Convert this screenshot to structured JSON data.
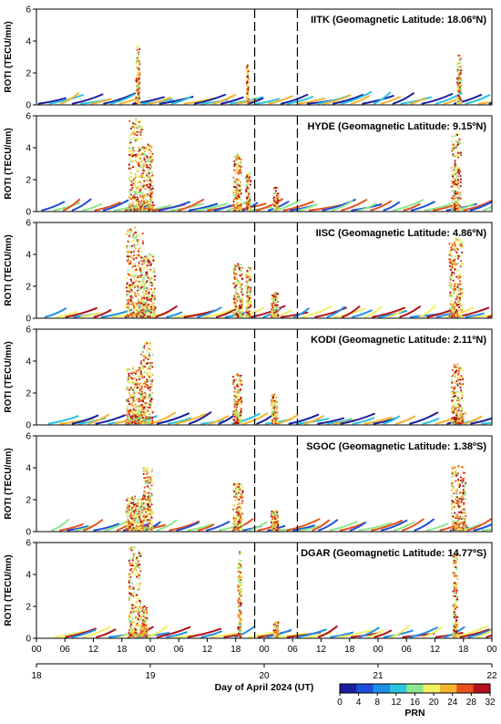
{
  "chart_data": {
    "type": "scatter",
    "colorbar": {
      "label": "PRN",
      "ticks": [
        0,
        4,
        8,
        12,
        16,
        20,
        24,
        28,
        32
      ],
      "colors": [
        "#1a1f9e",
        "#1e4fd8",
        "#1f8fe8",
        "#2ec3e0",
        "#8ee88a",
        "#f2f060",
        "#f5b42e",
        "#e8521e",
        "#b2121a"
      ]
    },
    "x_hour_ticks": [
      "00",
      "06",
      "12",
      "18",
      "00",
      "06",
      "12",
      "18",
      "00",
      "06",
      "12",
      "18",
      "00",
      "06",
      "12",
      "18",
      "00"
    ],
    "x_day_ticks": [
      "18",
      "19",
      "20",
      "21",
      "22"
    ],
    "xlabel": "Day of April 2024 (UT)",
    "x_range_hours": [
      0,
      96
    ],
    "storm_markers_hours": [
      46,
      55
    ],
    "panels": [
      {
        "title": "IITK (Geomagnetic Latitude: 18.06ºN)",
        "ylabel": "ROTI (TECU/mn)",
        "ylim": [
          0,
          6
        ],
        "yticks": [
          0,
          2,
          4,
          6
        ],
        "bursts": [
          {
            "start": 21.0,
            "end": 21.8,
            "peak": 3.7
          },
          {
            "start": 44.3,
            "end": 44.7,
            "peak": 2.5
          },
          {
            "start": 88.7,
            "end": 89.6,
            "peak": 3.1
          }
        ]
      },
      {
        "title": "HYDE (Geomagnetic Latitude: 9.15ºN)",
        "ylabel": "ROTI (TECU/mn)",
        "ylim": [
          0,
          6
        ],
        "yticks": [
          0,
          2,
          4,
          6
        ],
        "bursts": [
          {
            "start": 19.5,
            "end": 22.5,
            "peak": 5.8
          },
          {
            "start": 22.5,
            "end": 24.6,
            "peak": 4.2
          },
          {
            "start": 41.5,
            "end": 43.2,
            "peak": 3.6
          },
          {
            "start": 44.2,
            "end": 45.2,
            "peak": 2.4
          },
          {
            "start": 50.0,
            "end": 51.0,
            "peak": 1.5
          },
          {
            "start": 87.5,
            "end": 89.5,
            "peak": 4.9
          }
        ]
      },
      {
        "title": "IISC (Geomagnetic Latitude: 4.86ºN)",
        "ylabel": "ROTI (TECU/mn)",
        "ylim": [
          0,
          6
        ],
        "yticks": [
          0,
          2,
          4,
          6
        ],
        "bursts": [
          {
            "start": 19.0,
            "end": 22.5,
            "peak": 5.7
          },
          {
            "start": 22.5,
            "end": 25.0,
            "peak": 4.0
          },
          {
            "start": 41.5,
            "end": 43.5,
            "peak": 3.4
          },
          {
            "start": 44.2,
            "end": 45.2,
            "peak": 3.2
          },
          {
            "start": 49.5,
            "end": 51.0,
            "peak": 1.6
          },
          {
            "start": 87.0,
            "end": 89.8,
            "peak": 5.0
          }
        ]
      },
      {
        "title": "KODI (Geomagnetic Latitude: 2.11ºN)",
        "ylabel": "ROTI (TECU/mn)",
        "ylim": [
          0,
          6
        ],
        "yticks": [
          0,
          2,
          4,
          6
        ],
        "bursts": [
          {
            "start": 19.0,
            "end": 22.0,
            "peak": 3.6
          },
          {
            "start": 22.0,
            "end": 24.5,
            "peak": 5.2
          },
          {
            "start": 41.5,
            "end": 43.3,
            "peak": 3.2
          },
          {
            "start": 49.5,
            "end": 50.8,
            "peak": 1.9
          },
          {
            "start": 87.5,
            "end": 90.0,
            "peak": 3.8
          }
        ]
      },
      {
        "title": "SGOC (Geomagnetic Latitude: 1.38ºS)",
        "ylabel": "ROTI (TECU/mn)",
        "ylim": [
          0,
          6
        ],
        "yticks": [
          0,
          2,
          4,
          6
        ],
        "bursts": [
          {
            "start": 19.0,
            "end": 22.5,
            "peak": 2.2
          },
          {
            "start": 22.5,
            "end": 24.5,
            "peak": 4.0
          },
          {
            "start": 41.5,
            "end": 43.5,
            "peak": 3.0
          },
          {
            "start": 49.5,
            "end": 51.0,
            "peak": 1.3
          },
          {
            "start": 87.5,
            "end": 90.5,
            "peak": 4.1
          }
        ]
      },
      {
        "title": "DGAR (Geomagnetic Latitude: 14.77ºS)",
        "ylabel": "ROTI (TECU/mn)",
        "ylim": [
          0,
          6
        ],
        "yticks": [
          0,
          2,
          4,
          6
        ],
        "bursts": [
          {
            "start": 19.5,
            "end": 22.0,
            "peak": 5.7
          },
          {
            "start": 22.0,
            "end": 23.5,
            "peak": 2.0
          },
          {
            "start": 42.5,
            "end": 43.2,
            "peak": 5.4
          },
          {
            "start": 50.0,
            "end": 51.0,
            "peak": 1.0
          },
          {
            "start": 87.8,
            "end": 88.8,
            "peak": 5.3
          }
        ]
      }
    ]
  }
}
